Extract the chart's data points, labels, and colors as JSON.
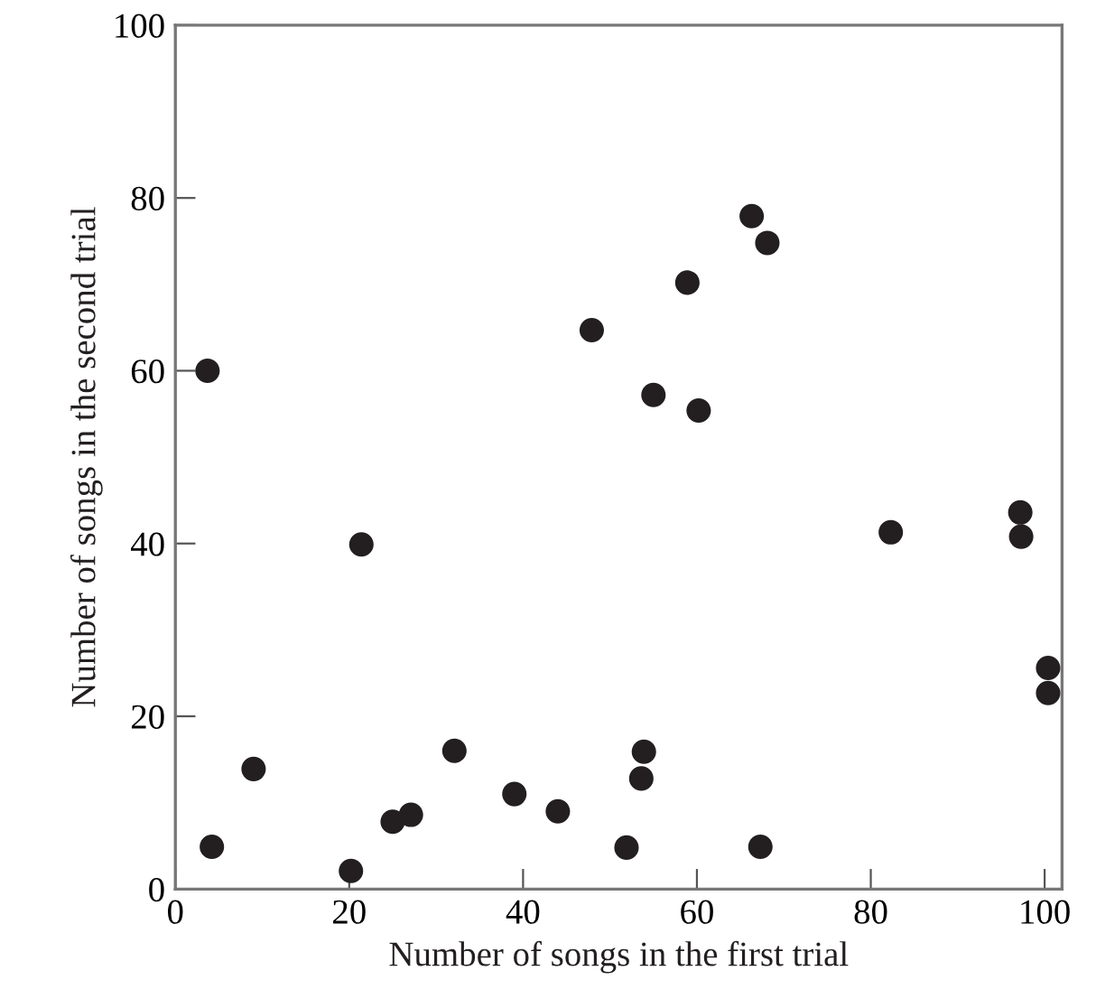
{
  "chart_data": {
    "type": "scatter",
    "xlabel": "Number of songs in the first trial",
    "ylabel": "Number of songs in the second trial",
    "x": [
      3.7,
      47.9,
      66.3,
      68.1,
      58.9,
      55.0,
      60.2,
      4.2,
      9.0,
      20.2,
      21.4,
      25.0,
      27.1,
      32.1,
      39.0,
      44.0,
      51.9,
      53.9,
      53.6,
      67.3,
      82.3,
      97.2,
      97.3,
      100.4,
      100.4
    ],
    "series": [
      {
        "color": "#231f20",
        "values": [
          60,
          64.7,
          77.9,
          74.8,
          70.2,
          57.2,
          55.4,
          4.9,
          13.9,
          2.1,
          39.9,
          7.8,
          8.6,
          16.0,
          11.0,
          9.0,
          4.8,
          15.9,
          12.8,
          4.9,
          41.3,
          43.6,
          40.8,
          25.6,
          22.7
        ]
      }
    ],
    "xlim": [
      0,
      102
    ],
    "ylim": [
      0,
      100
    ],
    "xticks": [
      0,
      20,
      40,
      60,
      80,
      100
    ],
    "yticks": [
      0,
      20,
      40,
      60,
      80,
      100
    ],
    "marker": "circle",
    "grid": false,
    "legend": false
  }
}
